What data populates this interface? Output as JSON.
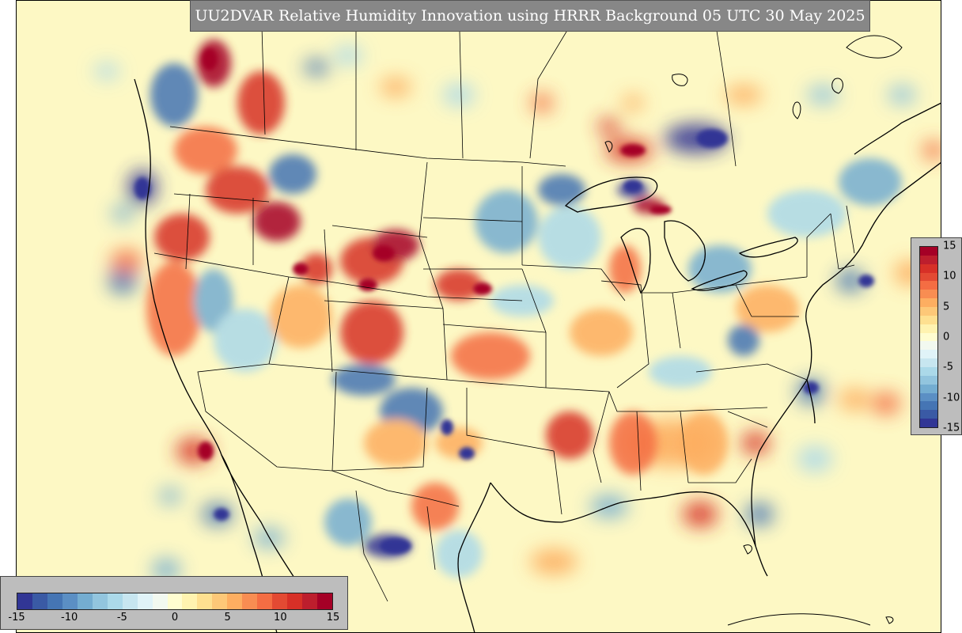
{
  "title": "UU2DVAR Relative Humidity Innovation using HRRR Background 05 UTC 30 May 2025",
  "colorbar": {
    "min": -15,
    "max": 15,
    "tick_labels": [
      "-15",
      "-10",
      "-5",
      "0",
      "5",
      "10",
      "15"
    ],
    "vertical_tick_labels": [
      "15",
      "10",
      "5",
      "0",
      "-5",
      "-10",
      "-15"
    ],
    "colors": [
      "#313695",
      "#3a5aa5",
      "#4575b4",
      "#5b8fc4",
      "#74add1",
      "#92c5de",
      "#abd9e9",
      "#c7e6f0",
      "#e0f3f8",
      "#f2f9f0",
      "#fffdd0",
      "#fff3b0",
      "#fee090",
      "#fdc878",
      "#fdae61",
      "#f88d52",
      "#f46d43",
      "#e34a33",
      "#d73027",
      "#bd1e2d",
      "#a50026"
    ]
  }
}
